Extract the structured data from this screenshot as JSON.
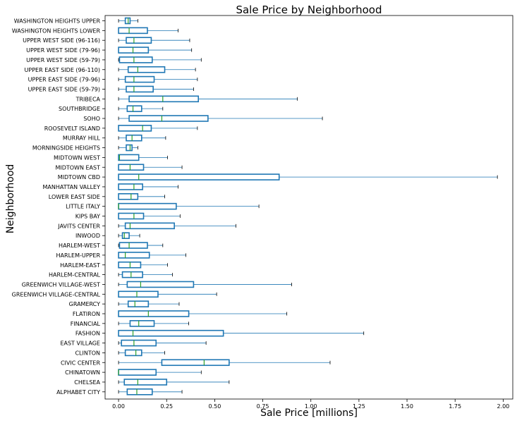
{
  "chart_data": {
    "type": "boxplot",
    "orientation": "horizontal",
    "title": "Sale Price by Neighborhood",
    "xlabel": "Sale Price [millions]",
    "ylabel": "Neighborhood",
    "xlim": [
      -0.07,
      2.05
    ],
    "xticks": [
      0.0,
      0.25,
      0.5,
      0.75,
      1.0,
      1.25,
      1.5,
      1.75,
      2.0
    ],
    "xtick_labels": [
      "0.00",
      "0.25",
      "0.50",
      "0.75",
      "1.00",
      "1.25",
      "1.50",
      "1.75",
      "2.00"
    ],
    "grid": false,
    "colors": {
      "box": "#1f77b4",
      "median": "#2ca02c",
      "whisker": "#1f77b4",
      "cap": "#000000"
    },
    "boxes": [
      {
        "name": "WASHINGTON HEIGHTS UPPER",
        "low": 0.0,
        "q1": 0.035,
        "median": 0.05,
        "q3": 0.06,
        "high": 0.1
      },
      {
        "name": "WASHINGTON HEIGHTS LOWER",
        "low": 0.0,
        "q1": 0.0,
        "median": 0.055,
        "q3": 0.15,
        "high": 0.31
      },
      {
        "name": "UPPER WEST SIDE (96-116)",
        "low": 0.0,
        "q1": 0.04,
        "median": 0.08,
        "q3": 0.17,
        "high": 0.37
      },
      {
        "name": "UPPER WEST SIDE (79-96)",
        "low": 0.0,
        "q1": 0.0,
        "median": 0.075,
        "q3": 0.155,
        "high": 0.38
      },
      {
        "name": "UPPER WEST SIDE (59-79)",
        "low": 0.0,
        "q1": 0.005,
        "median": 0.08,
        "q3": 0.175,
        "high": 0.43
      },
      {
        "name": "UPPER EAST SIDE (96-110)",
        "low": 0.0,
        "q1": 0.05,
        "median": 0.1,
        "q3": 0.24,
        "high": 0.4
      },
      {
        "name": "UPPER EAST SIDE (79-96)",
        "low": 0.0,
        "q1": 0.035,
        "median": 0.08,
        "q3": 0.185,
        "high": 0.41
      },
      {
        "name": "UPPER EAST SIDE (59-79)",
        "low": 0.0,
        "q1": 0.04,
        "median": 0.08,
        "q3": 0.18,
        "high": 0.39
      },
      {
        "name": "TRIBECA",
        "low": 0.0,
        "q1": 0.055,
        "median": 0.23,
        "q3": 0.415,
        "high": 0.93
      },
      {
        "name": "SOUTHBRIDGE",
        "low": 0.0,
        "q1": 0.045,
        "median": 0.075,
        "q3": 0.12,
        "high": 0.23
      },
      {
        "name": "SOHO",
        "low": 0.0,
        "q1": 0.055,
        "median": 0.225,
        "q3": 0.465,
        "high": 1.06
      },
      {
        "name": "ROOSEVELT ISLAND",
        "low": 0.0,
        "q1": 0.0,
        "median": 0.125,
        "q3": 0.17,
        "high": 0.41
      },
      {
        "name": "MURRAY HILL",
        "low": 0.0,
        "q1": 0.04,
        "median": 0.07,
        "q3": 0.12,
        "high": 0.245
      },
      {
        "name": "MORNINGSIDE HEIGHTS",
        "low": 0.0,
        "q1": 0.04,
        "median": 0.06,
        "q3": 0.07,
        "high": 0.1
      },
      {
        "name": "MIDTOWN WEST",
        "low": 0.0,
        "q1": 0.0,
        "median": 0.005,
        "q3": 0.105,
        "high": 0.255
      },
      {
        "name": "MIDTOWN EAST",
        "low": 0.0,
        "q1": 0.0,
        "median": 0.06,
        "q3": 0.13,
        "high": 0.33
      },
      {
        "name": "MIDTOWN CBD",
        "low": 0.0,
        "q1": 0.0,
        "median": 0.105,
        "q3": 0.835,
        "high": 1.97
      },
      {
        "name": "MANHATTAN VALLEY",
        "low": 0.0,
        "q1": 0.0,
        "median": 0.08,
        "q3": 0.125,
        "high": 0.31
      },
      {
        "name": "LOWER EAST SIDE",
        "low": 0.0,
        "q1": 0.0,
        "median": 0.065,
        "q3": 0.1,
        "high": 0.24
      },
      {
        "name": "LITTLE ITALY",
        "low": 0.0,
        "q1": 0.0,
        "median": 0.0,
        "q3": 0.3,
        "high": 0.73
      },
      {
        "name": "KIPS BAY",
        "low": 0.0,
        "q1": 0.0,
        "median": 0.08,
        "q3": 0.13,
        "high": 0.32
      },
      {
        "name": "JAVITS CENTER",
        "low": 0.0,
        "q1": 0.035,
        "median": 0.06,
        "q3": 0.29,
        "high": 0.61
      },
      {
        "name": "INWOOD",
        "low": 0.0,
        "q1": 0.02,
        "median": 0.03,
        "q3": 0.055,
        "high": 0.11
      },
      {
        "name": "HARLEM-WEST",
        "low": 0.0,
        "q1": 0.005,
        "median": 0.055,
        "q3": 0.15,
        "high": 0.23
      },
      {
        "name": "HARLEM-UPPER",
        "low": 0.0,
        "q1": 0.0,
        "median": 0.035,
        "q3": 0.16,
        "high": 0.35
      },
      {
        "name": "HARLEM-EAST",
        "low": 0.0,
        "q1": 0.0,
        "median": 0.06,
        "q3": 0.115,
        "high": 0.255
      },
      {
        "name": "HARLEM-CENTRAL",
        "low": 0.0,
        "q1": 0.02,
        "median": 0.065,
        "q3": 0.125,
        "high": 0.28
      },
      {
        "name": "GREENWICH VILLAGE-WEST",
        "low": 0.0,
        "q1": 0.045,
        "median": 0.115,
        "q3": 0.39,
        "high": 0.9
      },
      {
        "name": "GREENWICH VILLAGE-CENTRAL",
        "low": 0.0,
        "q1": 0.0,
        "median": 0.095,
        "q3": 0.205,
        "high": 0.51
      },
      {
        "name": "GRAMERCY",
        "low": 0.0,
        "q1": 0.05,
        "median": 0.085,
        "q3": 0.155,
        "high": 0.315
      },
      {
        "name": "FLATIRON",
        "low": 0.0,
        "q1": 0.0,
        "median": 0.155,
        "q3": 0.365,
        "high": 0.875
      },
      {
        "name": "FINANCIAL",
        "low": 0.0,
        "q1": 0.06,
        "median": 0.105,
        "q3": 0.185,
        "high": 0.365
      },
      {
        "name": "FASHION",
        "low": 0.0,
        "q1": 0.0,
        "median": 0.075,
        "q3": 0.545,
        "high": 1.275
      },
      {
        "name": "EAST VILLAGE",
        "low": 0.0,
        "q1": 0.015,
        "median": 0.08,
        "q3": 0.195,
        "high": 0.455
      },
      {
        "name": "CLINTON",
        "low": 0.0,
        "q1": 0.035,
        "median": 0.09,
        "q3": 0.12,
        "high": 0.24
      },
      {
        "name": "CIVIC CENTER",
        "low": 0.0,
        "q1": 0.225,
        "median": 0.445,
        "q3": 0.575,
        "high": 1.1
      },
      {
        "name": "CHINATOWN",
        "low": 0.0,
        "q1": 0.0,
        "median": 0.0,
        "q3": 0.195,
        "high": 0.43
      },
      {
        "name": "CHELSEA",
        "low": 0.0,
        "q1": 0.03,
        "median": 0.1,
        "q3": 0.25,
        "high": 0.575
      },
      {
        "name": "ALPHABET CITY",
        "low": 0.0,
        "q1": 0.045,
        "median": 0.095,
        "q3": 0.175,
        "high": 0.33
      }
    ]
  }
}
